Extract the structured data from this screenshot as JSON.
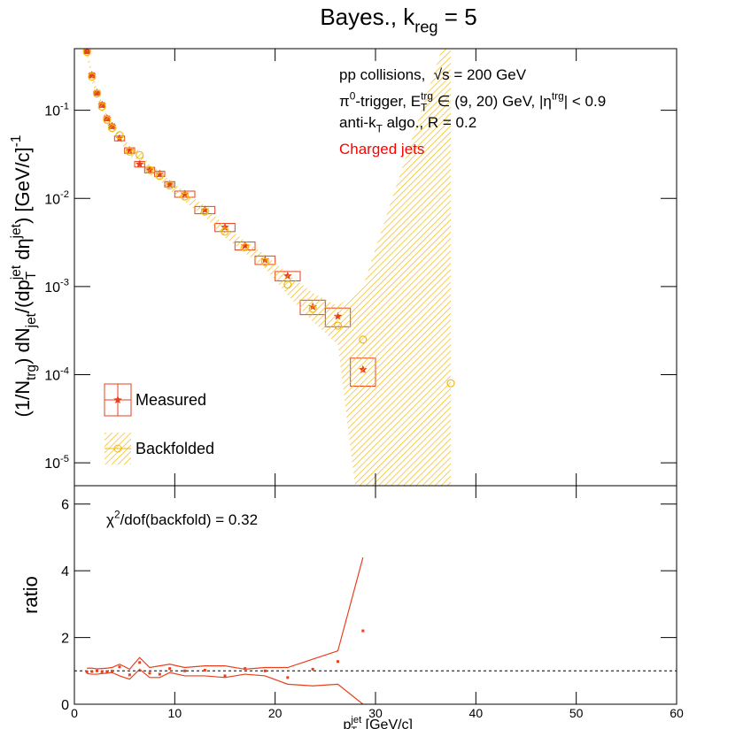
{
  "chart_data": [
    {
      "type": "scatter",
      "title": [
        "Bayes., k",
        {
          "sub": "reg"
        },
        " = 5"
      ],
      "y_label": [
        "(1/N",
        {
          "sub": "trg"
        },
        ") dN",
        {
          "sub": "jet"
        },
        "/(dp",
        {
          "sub": "T",
          "sup": "jet"
        },
        " dη",
        {
          "sup": "jet"
        },
        ") [GeV/c]",
        {
          "sup": "-1"
        }
      ],
      "annotations": [
        {
          "text": [
            "pp collisions,  √s = 200 GeV"
          ],
          "color": "#000000"
        },
        {
          "text": [
            "π",
            {
              "sup": "0"
            },
            "-trigger, E",
            {
              "sub": "T",
              "sup": "trg"
            },
            " ∈ (9, 20) GeV, |η",
            {
              "sup": "trg"
            },
            "| < 0.9"
          ],
          "color": "#000000"
        },
        {
          "text": [
            "anti-k",
            {
              "sub": "T"
            },
            " algo., R = 0.2"
          ],
          "color": "#000000"
        },
        {
          "text": [
            "Charged jets"
          ],
          "color": "#ff0000"
        }
      ],
      "yscale": "log",
      "xlim": [
        0,
        60
      ],
      "ylim": [
        5.5e-06,
        0.5
      ],
      "yticks": [
        {
          "value": 1e-05,
          "label": [
            "10",
            {
              "sup": "-5"
            }
          ]
        },
        {
          "value": 0.0001,
          "label": [
            "10",
            {
              "sup": "-4"
            }
          ]
        },
        {
          "value": 0.001,
          "label": [
            "10",
            {
              "sup": "-3"
            }
          ]
        },
        {
          "value": 0.01,
          "label": [
            "10",
            {
              "sup": "-2"
            }
          ]
        },
        {
          "value": 0.1,
          "label": [
            "10",
            {
              "sup": "-1"
            }
          ]
        }
      ],
      "legend": "lower left",
      "series": [
        {
          "name": "Measured",
          "color": "#e8401c",
          "x": [
            1.25,
            1.75,
            2.25,
            2.75,
            3.25,
            3.75,
            4.5,
            5.5,
            6.5,
            7.5,
            8.5,
            9.5,
            11,
            13,
            15,
            17,
            19,
            21.25,
            23.75,
            26.25,
            28.75
          ],
          "bins": [
            1,
            1.5,
            2,
            2.5,
            3,
            3.5,
            4,
            5,
            6,
            7,
            8,
            9,
            10,
            12,
            14,
            16,
            18,
            20,
            22.5,
            25,
            27.5,
            30
          ],
          "values": [
            0.47,
            0.25,
            0.158,
            0.115,
            0.081,
            0.066,
            0.048,
            0.035,
            0.0245,
            0.021,
            0.019,
            0.0145,
            0.0112,
            0.0074,
            0.0047,
            0.0029,
            0.002,
            0.00132,
            0.00059,
            0.00046,
            0.000114
          ],
          "sys_errors": [
            0.03,
            0.016,
            0.01,
            0.007,
            0.005,
            0.004,
            0.003,
            0.0025,
            0.0018,
            0.0015,
            0.0013,
            0.001,
            0.0009,
            0.0007,
            0.0005,
            0.0003,
            0.00022,
            0.00016,
            0.00011,
            0.00011,
            4e-05
          ]
        },
        {
          "name": "Backfolded",
          "color": "#f2b90f",
          "x": [
            1.25,
            1.75,
            2.25,
            2.75,
            3.25,
            3.75,
            4.5,
            5.5,
            6.5,
            7.5,
            8.5,
            9.5,
            11,
            13,
            15,
            17,
            19,
            21.25,
            23.75,
            26.25,
            28.75,
            37.5
          ],
          "values": [
            0.46,
            0.24,
            0.155,
            0.11,
            0.078,
            0.063,
            0.052,
            0.034,
            0.031,
            0.021,
            0.018,
            0.014,
            0.0105,
            0.0071,
            0.0042,
            0.0028,
            0.0019,
            0.00105,
            0.00056,
            0.00036,
            0.00025,
            8e-05
          ],
          "band_high": [
            0.52,
            0.27,
            0.175,
            0.124,
            0.088,
            0.071,
            0.059,
            0.039,
            0.035,
            0.024,
            0.0205,
            0.016,
            0.012,
            0.0082,
            0.0049,
            0.0033,
            0.0023,
            0.0014,
            0.00085,
            0.0006,
            0.001,
            1
          ],
          "band_low": [
            0.41,
            0.21,
            0.137,
            0.097,
            0.069,
            0.056,
            0.046,
            0.03,
            0.027,
            0.0185,
            0.016,
            0.0124,
            0.0092,
            0.0062,
            0.0036,
            0.0024,
            0.0016,
            0.0008,
            0.0004,
            0.00022,
            1e-06,
            1e-06
          ]
        }
      ]
    },
    {
      "type": "scatter",
      "annotations": [
        {
          "text": [
            "χ",
            {
              "sup": "2"
            },
            "/dof(backfold) = 0.32"
          ],
          "color": "#000000"
        }
      ],
      "y_label": [
        "ratio"
      ],
      "x_label": [
        "p",
        {
          "sub": "T",
          "sup": "jet"
        },
        " [GeV/c]"
      ],
      "xlim": [
        0,
        60
      ],
      "xticks": [
        0,
        10,
        20,
        30,
        40,
        50,
        60
      ],
      "ylim": [
        0,
        6.55
      ],
      "yticks": [
        0,
        2,
        4,
        6
      ],
      "reference_line": 1,
      "series": [
        {
          "color": "#e8401c",
          "x": [
            1.25,
            1.75,
            2.25,
            2.75,
            3.25,
            3.75,
            4.5,
            5.5,
            6.5,
            7.5,
            8.5,
            9.5,
            11,
            13,
            15,
            17,
            19,
            21.25,
            23.75,
            26.25,
            28.75
          ],
          "values": [
            0.97,
            0.98,
            1.0,
            0.97,
            0.98,
            0.99,
            1.12,
            0.88,
            1.25,
            0.93,
            0.9,
            1.07,
            1.0,
            1.02,
            0.85,
            1.07,
            1.0,
            0.8,
            1.05,
            1.28,
            2.2
          ],
          "band_high": [
            1.08,
            1.08,
            1.06,
            1.07,
            1.08,
            1.1,
            1.2,
            1.05,
            1.4,
            1.1,
            1.15,
            1.2,
            1.1,
            1.15,
            1.15,
            1.05,
            1.1,
            1.1,
            1.35,
            1.6,
            4.4
          ],
          "band_low": [
            0.92,
            0.9,
            0.9,
            0.92,
            0.93,
            0.95,
            0.85,
            0.75,
            1.05,
            0.8,
            0.8,
            0.95,
            0.85,
            0.85,
            0.8,
            0.9,
            0.85,
            0.6,
            0.55,
            0.6,
            0.0
          ]
        }
      ]
    }
  ]
}
